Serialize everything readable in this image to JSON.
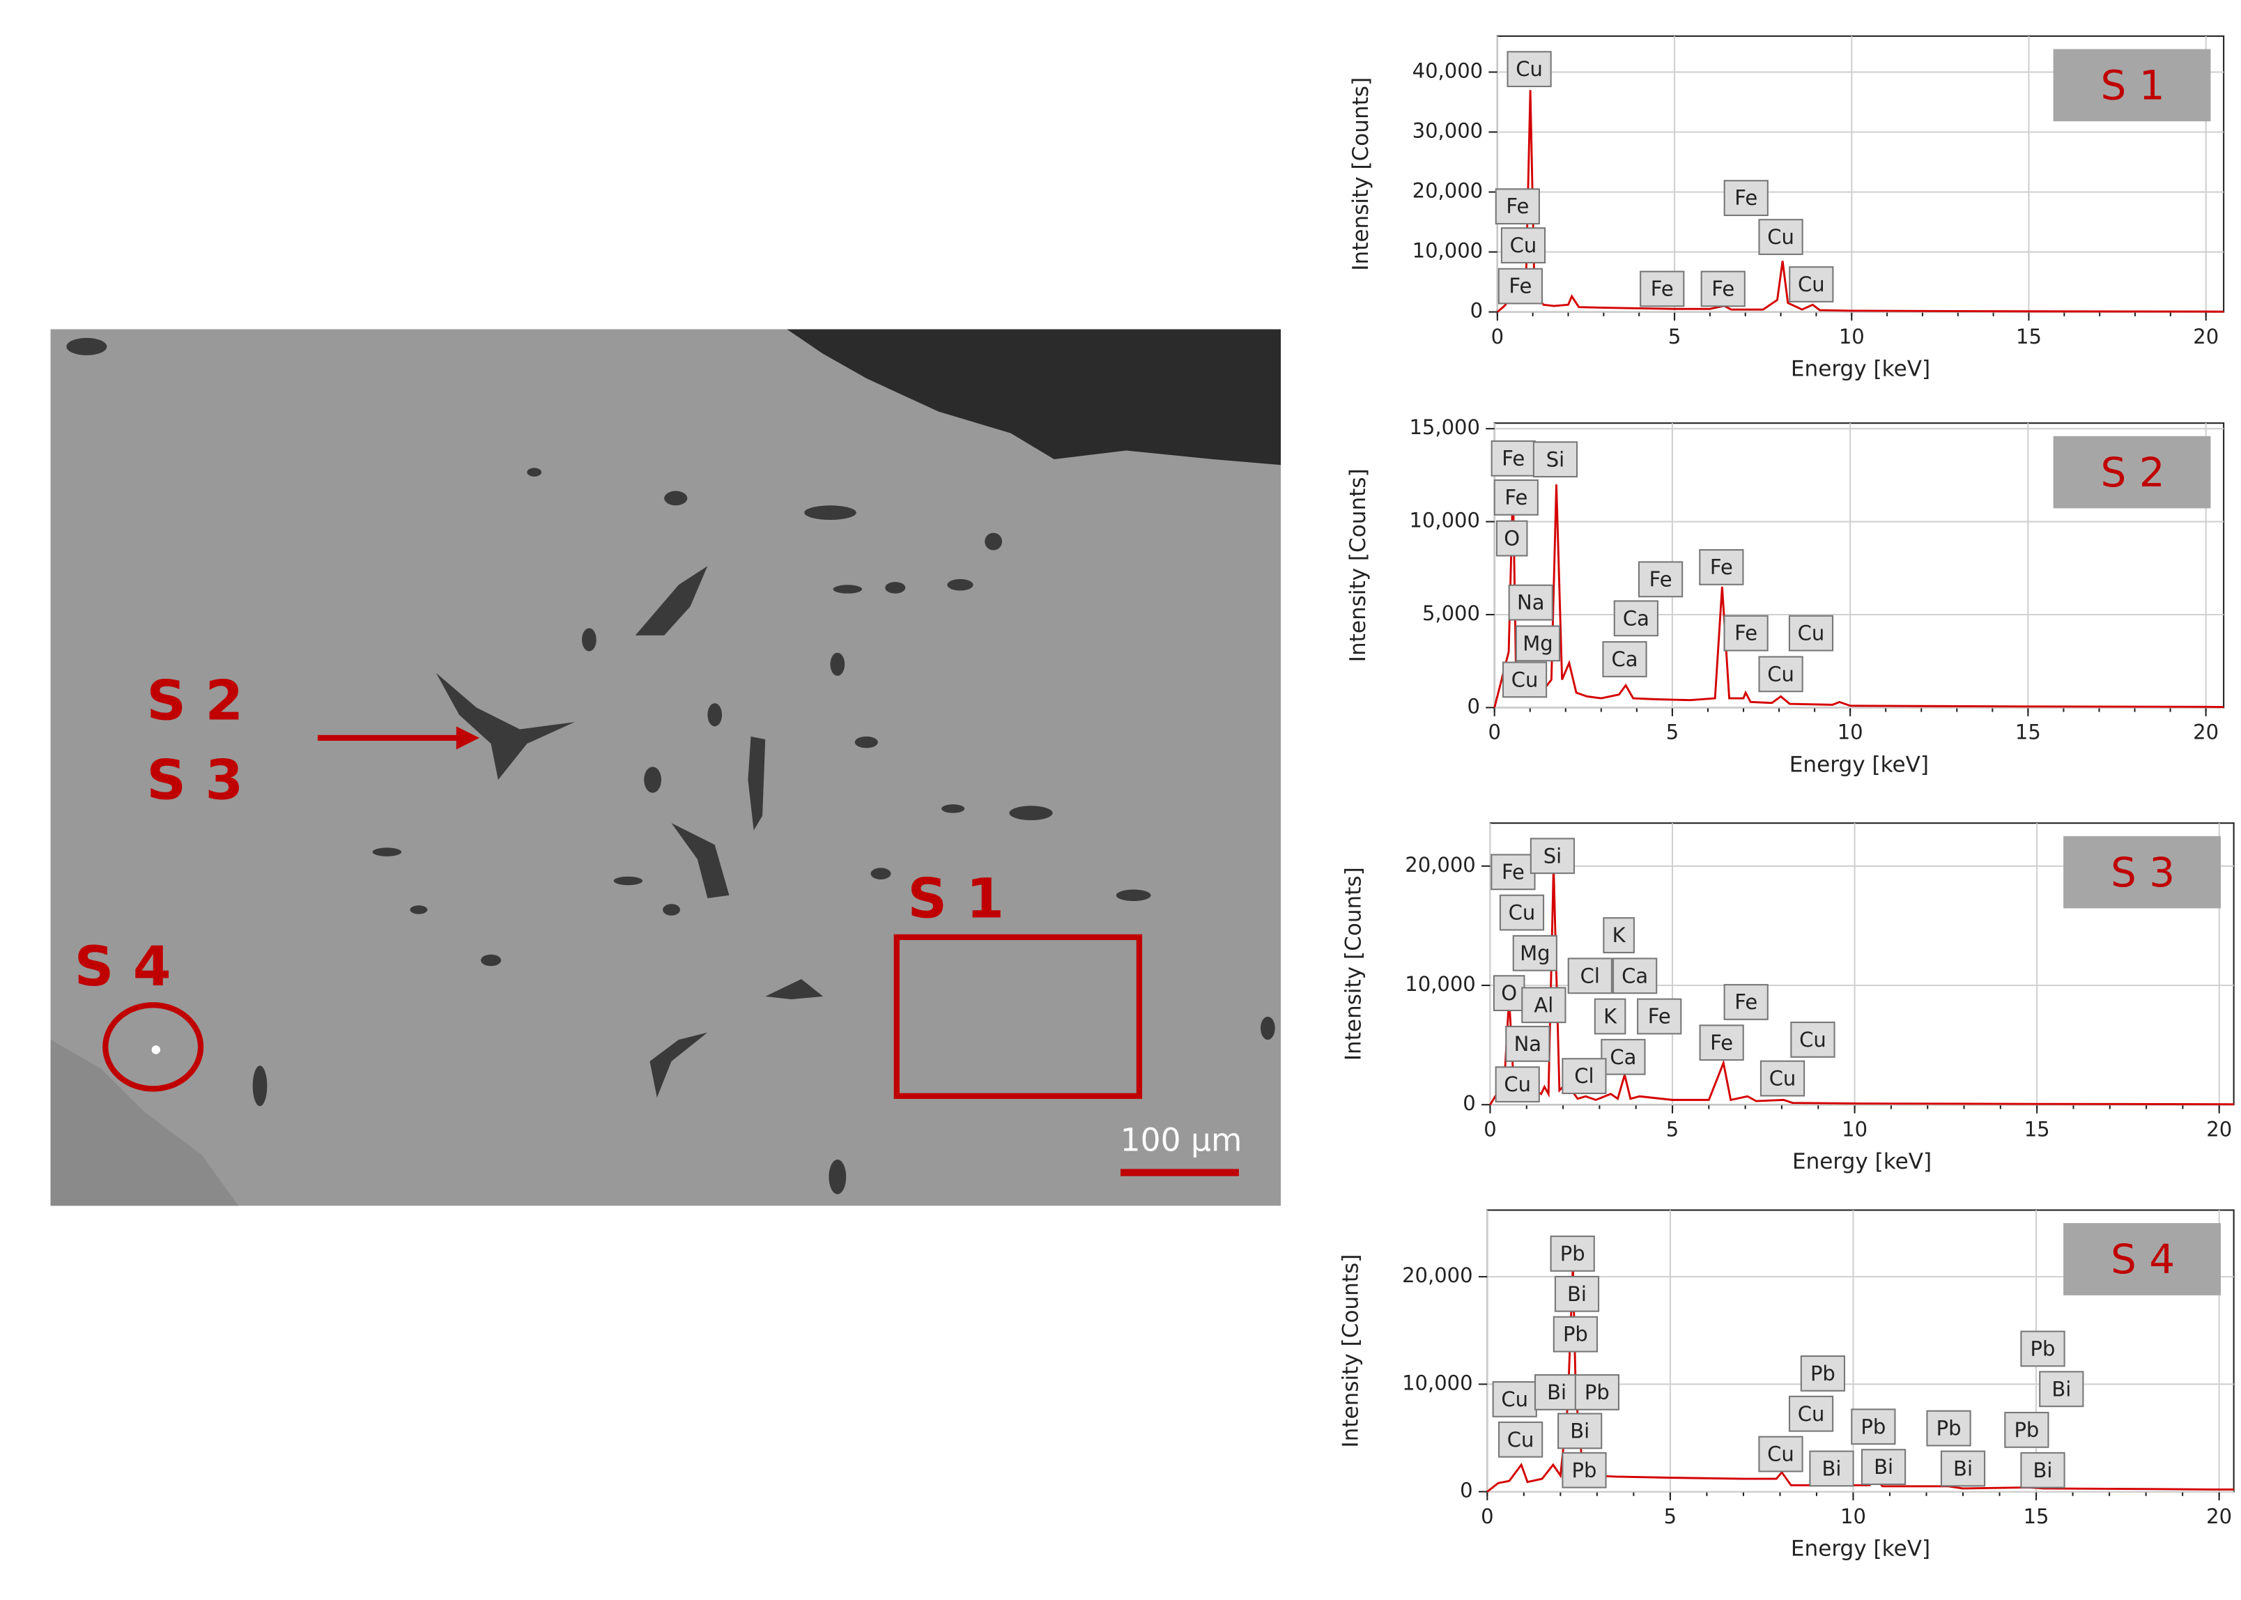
{
  "image": {
    "labels": [
      "S 2",
      "S 3",
      "S 1",
      "S 4"
    ],
    "scale_bar": "100 µm"
  },
  "chart_data": [
    {
      "type": "line",
      "title": "S 1",
      "xlabel": "Energy [keV]",
      "ylabel": "Intensity [Counts]",
      "color": "#d40000",
      "grid": true,
      "xlim": [
        0,
        20.5
      ],
      "ylim": [
        0,
        46000
      ],
      "xticks": [
        0,
        5,
        10,
        15,
        20
      ],
      "yticks": [
        0,
        {
          "value": 10000,
          "label": "10,000"
        },
        {
          "value": 20000,
          "label": "20,000"
        },
        {
          "value": 30000,
          "label": "30,000"
        },
        {
          "value": 40000,
          "label": "40,000"
        }
      ],
      "x": [
        0,
        0.2,
        0.4,
        0.6,
        0.8,
        0.93,
        1.05,
        1.3,
        1.6,
        2.0,
        2.1,
        2.3,
        3,
        4,
        5,
        6,
        6.4,
        6.6,
        7,
        7.5,
        7.9,
        8.05,
        8.2,
        8.6,
        8.9,
        9.1,
        10,
        12,
        15,
        18,
        20,
        20.5
      ],
      "values": [
        0,
        1000,
        2500,
        1500,
        3000,
        37000,
        3000,
        1200,
        1000,
        1200,
        2600,
        800,
        700,
        600,
        500,
        500,
        1000,
        400,
        400,
        400,
        2000,
        8500,
        1500,
        400,
        1200,
        300,
        200,
        150,
        100,
        80,
        60,
        50
      ],
      "annotations": [
        {
          "text": "Cu",
          "x": 0.9,
          "y": 40500
        },
        {
          "text": "Fe",
          "x": 0.57,
          "y": 17600
        },
        {
          "text": "Cu",
          "x": 0.73,
          "y": 11100
        },
        {
          "text": "Fe",
          "x": 0.65,
          "y": 4300
        },
        {
          "text": "Fe",
          "x": 4.65,
          "y": 3850
        },
        {
          "text": "Fe",
          "x": 6.37,
          "y": 3850
        },
        {
          "text": "Fe",
          "x": 7.02,
          "y": 19000
        },
        {
          "text": "Cu",
          "x": 8.0,
          "y": 12500
        },
        {
          "text": "Cu",
          "x": 8.86,
          "y": 4600
        }
      ]
    },
    {
      "type": "line",
      "title": "S 2",
      "xlabel": "Energy [keV]",
      "ylabel": "Intensity [Counts]",
      "color": "#d40000",
      "grid": true,
      "xlim": [
        0,
        20.5
      ],
      "ylim": [
        0,
        15300
      ],
      "xticks": [
        0,
        5,
        10,
        15,
        20
      ],
      "yticks": [
        0,
        {
          "value": 5000,
          "label": "5,000"
        },
        {
          "value": 10000,
          "label": "10,000"
        },
        {
          "value": 15000,
          "label": "15,000"
        }
      ],
      "x": [
        0,
        0.2,
        0.4,
        0.52,
        0.6,
        0.7,
        0.9,
        1.04,
        1.25,
        1.4,
        1.6,
        1.74,
        1.9,
        2.1,
        2.3,
        2.6,
        3.0,
        3.5,
        3.69,
        3.9,
        4.5,
        5.5,
        6.2,
        6.4,
        6.6,
        7.0,
        7.06,
        7.2,
        7.8,
        8.05,
        8.3,
        9.5,
        9.7,
        10,
        12,
        15,
        20,
        20.5
      ],
      "values": [
        0,
        1500,
        3000,
        12000,
        2500,
        1800,
        1500,
        1800,
        1200,
        1000,
        1500,
        12000,
        1500,
        2400,
        800,
        600,
        500,
        700,
        1200,
        500,
        450,
        400,
        500,
        6500,
        500,
        500,
        800,
        300,
        250,
        600,
        200,
        150,
        300,
        100,
        80,
        60,
        40,
        30
      ],
      "annotations": [
        {
          "text": "Fe",
          "x": 0.53,
          "y": 13400
        },
        {
          "text": "Fe",
          "x": 0.61,
          "y": 11300
        },
        {
          "text": "O",
          "x": 0.49,
          "y": 9100
        },
        {
          "text": "Si",
          "x": 1.71,
          "y": 13350
        },
        {
          "text": "Na",
          "x": 1.02,
          "y": 5650
        },
        {
          "text": "Mg",
          "x": 1.22,
          "y": 3450
        },
        {
          "text": "Cu",
          "x": 0.85,
          "y": 1500
        },
        {
          "text": "Fe",
          "x": 4.67,
          "y": 6900
        },
        {
          "text": "Ca",
          "x": 3.98,
          "y": 4800
        },
        {
          "text": "Ca",
          "x": 3.66,
          "y": 2600
        },
        {
          "text": "Fe",
          "x": 6.38,
          "y": 7550
        },
        {
          "text": "Fe",
          "x": 7.07,
          "y": 4000
        },
        {
          "text": "Cu",
          "x": 8.05,
          "y": 1800
        },
        {
          "text": "Cu",
          "x": 8.9,
          "y": 4000
        }
      ]
    },
    {
      "type": "line",
      "title": "S 3",
      "xlabel": "Energy [keV]",
      "ylabel": "Intensity [Counts]",
      "color": "#d40000",
      "grid": true,
      "xlim": [
        0,
        20.4
      ],
      "ylim": [
        0,
        23600
      ],
      "xticks": [
        0,
        5,
        10,
        15,
        20
      ],
      "yticks": [
        0,
        {
          "value": 10000,
          "label": "10,000"
        },
        {
          "value": 20000,
          "label": "20,000"
        }
      ],
      "x": [
        0,
        0.2,
        0.4,
        0.52,
        0.65,
        0.9,
        1.04,
        1.15,
        1.25,
        1.4,
        1.49,
        1.6,
        1.74,
        1.9,
        2.1,
        2.4,
        2.62,
        2.9,
        3.31,
        3.5,
        3.69,
        3.85,
        4.1,
        5,
        6,
        6.4,
        6.6,
        7.06,
        7.3,
        8.05,
        8.3,
        10,
        15,
        20,
        20.4
      ],
      "values": [
        0,
        1000,
        2500,
        9000,
        1500,
        1200,
        1000,
        900,
        1200,
        900,
        1500,
        900,
        20000,
        1200,
        1800,
        500,
        700,
        400,
        900,
        500,
        2500,
        500,
        700,
        400,
        400,
        3500,
        400,
        700,
        300,
        400,
        150,
        100,
        60,
        40,
        30
      ],
      "annotations": [
        {
          "text": "Fe",
          "x": 0.63,
          "y": 19500
        },
        {
          "text": "Si",
          "x": 1.71,
          "y": 20850
        },
        {
          "text": "Cu",
          "x": 0.87,
          "y": 16100
        },
        {
          "text": "Mg",
          "x": 1.23,
          "y": 12700
        },
        {
          "text": "O",
          "x": 0.52,
          "y": 9350
        },
        {
          "text": "Al",
          "x": 1.47,
          "y": 8350
        },
        {
          "text": "Na",
          "x": 1.03,
          "y": 5100
        },
        {
          "text": "Cu",
          "x": 0.75,
          "y": 1700
        },
        {
          "text": "K",
          "x": 3.53,
          "y": 14200
        },
        {
          "text": "Cl",
          "x": 2.74,
          "y": 10800
        },
        {
          "text": "Ca",
          "x": 3.97,
          "y": 10800
        },
        {
          "text": "K",
          "x": 3.29,
          "y": 7400
        },
        {
          "text": "Fe",
          "x": 4.64,
          "y": 7400
        },
        {
          "text": "Ca",
          "x": 3.65,
          "y": 4000
        },
        {
          "text": "Cl",
          "x": 2.58,
          "y": 2400
        },
        {
          "text": "Fe",
          "x": 7.02,
          "y": 8600
        },
        {
          "text": "Fe",
          "x": 6.35,
          "y": 5200
        },
        {
          "text": "Cu",
          "x": 8.85,
          "y": 5450
        },
        {
          "text": "Cu",
          "x": 8.02,
          "y": 2200
        }
      ]
    },
    {
      "type": "line",
      "title": "S 4",
      "xlabel": "Energy [keV]",
      "ylabel": "Intensity [Counts]",
      "color": "#d40000",
      "grid": true,
      "xlim": [
        0,
        20.4
      ],
      "ylim": [
        0,
        26200
      ],
      "xticks": [
        0,
        5,
        10,
        15,
        20
      ],
      "yticks": [
        0,
        {
          "value": 10000,
          "label": "10,000"
        },
        {
          "value": 20000,
          "label": "20,000"
        }
      ],
      "x": [
        0,
        0.3,
        0.6,
        0.93,
        1.1,
        1.5,
        1.8,
        2.0,
        2.2,
        2.34,
        2.42,
        2.6,
        2.9,
        3.5,
        5,
        7,
        7.9,
        8.05,
        8.3,
        9.2,
        10.45,
        10.55,
        10.8,
        12.6,
        13,
        14.8,
        15.2,
        18,
        20,
        20.4
      ],
      "values": [
        0,
        800,
        1000,
        2500,
        900,
        1200,
        2500,
        1500,
        8000,
        21000,
        9000,
        2500,
        1500,
        1400,
        1300,
        1200,
        1200,
        1800,
        600,
        600,
        600,
        1500,
        500,
        500,
        300,
        400,
        300,
        250,
        200,
        200
      ],
      "annotations": [
        {
          "text": "Pb",
          "x": 2.33,
          "y": 22150
        },
        {
          "text": "Bi",
          "x": 2.45,
          "y": 18400
        },
        {
          "text": "Pb",
          "x": 2.41,
          "y": 14650
        },
        {
          "text": "Cu",
          "x": 0.75,
          "y": 8600
        },
        {
          "text": "Bi",
          "x": 1.9,
          "y": 9250
        },
        {
          "text": "Pb",
          "x": 3.0,
          "y": 9250
        },
        {
          "text": "Cu",
          "x": 0.91,
          "y": 4850
        },
        {
          "text": "Bi",
          "x": 2.53,
          "y": 5650
        },
        {
          "text": "Pb",
          "x": 2.65,
          "y": 2000
        },
        {
          "text": "Pb",
          "x": 9.17,
          "y": 11000
        },
        {
          "text": "Cu",
          "x": 8.85,
          "y": 7250
        },
        {
          "text": "Cu",
          "x": 8.02,
          "y": 3500
        },
        {
          "text": "Bi",
          "x": 9.41,
          "y": 2150
        },
        {
          "text": "Pb",
          "x": 10.55,
          "y": 6050
        },
        {
          "text": "Bi",
          "x": 10.83,
          "y": 2300
        },
        {
          "text": "Pb",
          "x": 12.61,
          "y": 5900
        },
        {
          "text": "Bi",
          "x": 13.0,
          "y": 2150
        },
        {
          "text": "Pb",
          "x": 15.18,
          "y": 13300
        },
        {
          "text": "Bi",
          "x": 15.69,
          "y": 9550
        },
        {
          "text": "Pb",
          "x": 14.74,
          "y": 5750
        },
        {
          "text": "Bi",
          "x": 15.18,
          "y": 2000
        }
      ]
    }
  ]
}
